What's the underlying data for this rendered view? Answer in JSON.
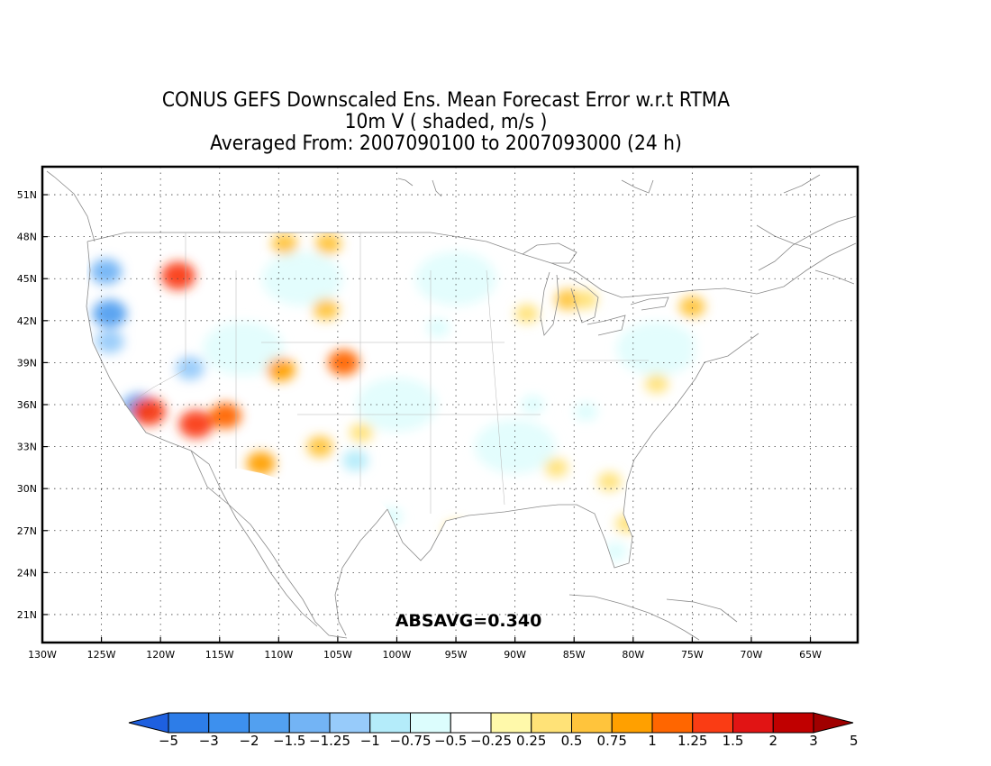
{
  "title": {
    "line1": "CONUS GEFS Downscaled Ens. Mean Forecast Error w.r.t RTMA",
    "line2": "10m V ( shaded, m/s )",
    "line3": "Averaged From: 2007090100 to 2007093000 (24 h)"
  },
  "annotation": "ABSAVG=0.340",
  "axes": {
    "lon_ticks": [
      "130W",
      "125W",
      "120W",
      "115W",
      "110W",
      "105W",
      "100W",
      "95W",
      "90W",
      "85W",
      "80W",
      "75W",
      "70W",
      "65W"
    ],
    "lat_ticks": [
      "51N",
      "48N",
      "45N",
      "42N",
      "39N",
      "36N",
      "33N",
      "30N",
      "27N",
      "24N",
      "21N"
    ],
    "lon_range": [
      -130,
      -61
    ],
    "lat_range": [
      19,
      53
    ],
    "grid": "dotted"
  },
  "colorbar": {
    "labels": [
      "−5",
      "−3",
      "−2",
      "−1.5",
      "−1.25",
      "−1",
      "−0.75",
      "−0.5",
      "−0.25",
      "0.25",
      "0.5",
      "0.75",
      "1",
      "1.25",
      "1.5",
      "2",
      "3",
      "5"
    ],
    "colors": [
      "#1e60e0",
      "#2d7de8",
      "#3d90ee",
      "#52a0f0",
      "#73b4f5",
      "#97cbfa",
      "#b4ecfa",
      "#dcfdfd",
      "#ffffff",
      "#fff9aa",
      "#ffe277",
      "#ffc43c",
      "#ffa000",
      "#ff6600",
      "#fa3c14",
      "#e11414",
      "#c00000",
      "#a00000"
    ]
  },
  "map_fields": [
    {
      "lon": -124.3,
      "lat": 42.5,
      "v": -1.5
    },
    {
      "lon": -124.6,
      "lat": 45.5,
      "v": -1.25
    },
    {
      "lon": -124.3,
      "lat": 40.5,
      "v": -1.0
    },
    {
      "lon": -121.8,
      "lat": 35.8,
      "v": -1.5
    },
    {
      "lon": -117.5,
      "lat": 38.6,
      "v": -1.0
    },
    {
      "lon": -118.5,
      "lat": 45.2,
      "v": 1.5
    },
    {
      "lon": -121.0,
      "lat": 35.5,
      "v": 1.5
    },
    {
      "lon": -117.0,
      "lat": 34.6,
      "v": 1.5
    },
    {
      "lon": -114.5,
      "lat": 35.2,
      "v": 1.25
    },
    {
      "lon": -111.5,
      "lat": 31.8,
      "v": 1.0
    },
    {
      "lon": -109.8,
      "lat": 38.5,
      "v": 1.0
    },
    {
      "lon": -104.5,
      "lat": 39.0,
      "v": 1.25
    },
    {
      "lon": -106.0,
      "lat": 42.8,
      "v": 0.75
    },
    {
      "lon": -109.5,
      "lat": 47.5,
      "v": 0.75
    },
    {
      "lon": -105.8,
      "lat": 47.5,
      "v": 0.75
    },
    {
      "lon": -106.5,
      "lat": 33.0,
      "v": 0.75
    },
    {
      "lon": -103.0,
      "lat": 34.0,
      "v": 0.5
    },
    {
      "lon": -103.5,
      "lat": 32.0,
      "v": -0.75
    },
    {
      "lon": -96.5,
      "lat": 41.5,
      "v": -0.5
    },
    {
      "lon": -100.5,
      "lat": 28.0,
      "v": -0.5
    },
    {
      "lon": -89.0,
      "lat": 42.5,
      "v": 0.5
    },
    {
      "lon": -85.5,
      "lat": 43.5,
      "v": 0.75
    },
    {
      "lon": -84.0,
      "lat": 43.5,
      "v": 0.5
    },
    {
      "lon": -88.5,
      "lat": 36.0,
      "v": -0.5
    },
    {
      "lon": -84.0,
      "lat": 35.5,
      "v": -0.5
    },
    {
      "lon": -80.5,
      "lat": 35.5,
      "v": -0.25
    },
    {
      "lon": -82.0,
      "lat": 30.5,
      "v": 0.5
    },
    {
      "lon": -86.5,
      "lat": 31.5,
      "v": 0.5
    },
    {
      "lon": -75.0,
      "lat": 43.0,
      "v": 0.75
    },
    {
      "lon": -78.0,
      "lat": 37.5,
      "v": 0.5
    },
    {
      "lon": -80.5,
      "lat": 27.5,
      "v": 0.5
    },
    {
      "lon": -81.5,
      "lat": 25.5,
      "v": -0.5
    },
    {
      "lon": -95.0,
      "lat": 27.0,
      "v": 0.5
    },
    {
      "lon": -85.0,
      "lat": 47.0,
      "v": -0.5
    },
    {
      "lon": -74.0,
      "lat": 40.0,
      "v": -0.25
    }
  ]
}
